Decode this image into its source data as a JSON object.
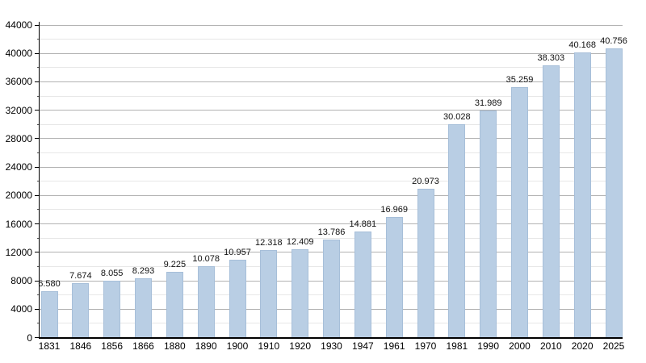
{
  "chart_data": {
    "type": "bar",
    "title": "",
    "xlabel": "",
    "ylabel": "",
    "categories": [
      "1831",
      "1846",
      "1856",
      "1866",
      "1880",
      "1890",
      "1900",
      "1910",
      "1920",
      "1930",
      "1947",
      "1961",
      "1970",
      "1981",
      "1990",
      "2000",
      "2010",
      "2020",
      "2025"
    ],
    "values": [
      6580,
      7674,
      8055,
      8293,
      9225,
      10078,
      10957,
      12318,
      12409,
      13786,
      14881,
      16969,
      20973,
      30028,
      31989,
      35259,
      38303,
      40168,
      40756
    ],
    "value_labels": [
      "6.580",
      "7.674",
      "8.055",
      "8.293",
      "9.225",
      "10.078",
      "10.957",
      "12.318",
      "12.409",
      "13.786",
      "14.881",
      "16.969",
      "20.973",
      "30.028",
      "31.989",
      "35.259",
      "38.303",
      "40.168",
      "40.756"
    ],
    "ylim": [
      0,
      44000
    ],
    "y_major_step": 4000,
    "y_minor_step": 2000,
    "y_tick_labels": [
      "0",
      "4000",
      "8000",
      "12000",
      "16000",
      "20000",
      "24000",
      "28000",
      "32000",
      "36000",
      "40000",
      "44000"
    ],
    "grid": true,
    "legend_position": "none",
    "colors": {
      "bar_fill": "#b9cee4",
      "bar_border": "#a7bfd9",
      "grid_major": "#b2b2b2",
      "grid_minor": "#e7e7e7",
      "axis": "#000000",
      "text": "#000000",
      "background": "#ffffff"
    }
  }
}
